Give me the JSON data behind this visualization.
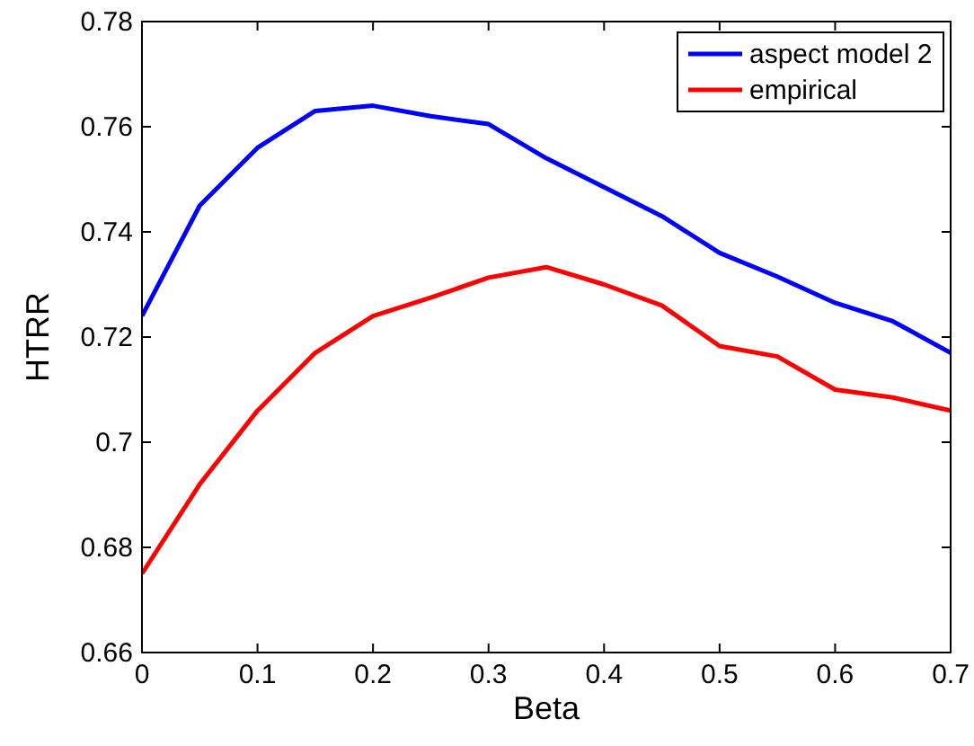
{
  "chart_data": {
    "type": "line",
    "xlabel": "Beta",
    "ylabel": "HTRR",
    "x": [
      0,
      0.05,
      0.1,
      0.15,
      0.2,
      0.25,
      0.3,
      0.35,
      0.4,
      0.45,
      0.5,
      0.55,
      0.6,
      0.65,
      0.7
    ],
    "series": [
      {
        "name": "aspect model 2",
        "color": "#0000ff",
        "values": [
          0.724,
          0.745,
          0.756,
          0.763,
          0.764,
          0.762,
          0.7605,
          0.754,
          0.7485,
          0.743,
          0.736,
          0.7315,
          0.7265,
          0.723,
          0.717
        ]
      },
      {
        "name": "empirical",
        "color": "#ff0000",
        "values": [
          0.675,
          0.692,
          0.706,
          0.717,
          0.724,
          0.7275,
          0.7313,
          0.7333,
          0.73,
          0.726,
          0.7183,
          0.7163,
          0.71,
          0.7085,
          0.706
        ]
      }
    ],
    "xlim": [
      0,
      0.7
    ],
    "xticks": [
      0,
      0.1,
      0.2,
      0.3,
      0.4,
      0.5,
      0.6,
      0.7
    ],
    "ylim": [
      0.66,
      0.78
    ],
    "yticks": [
      0.66,
      0.68,
      0.7,
      0.72,
      0.74,
      0.76,
      0.78
    ],
    "legend": "top right",
    "grid": false,
    "marker": "none",
    "line_style": "solid"
  }
}
